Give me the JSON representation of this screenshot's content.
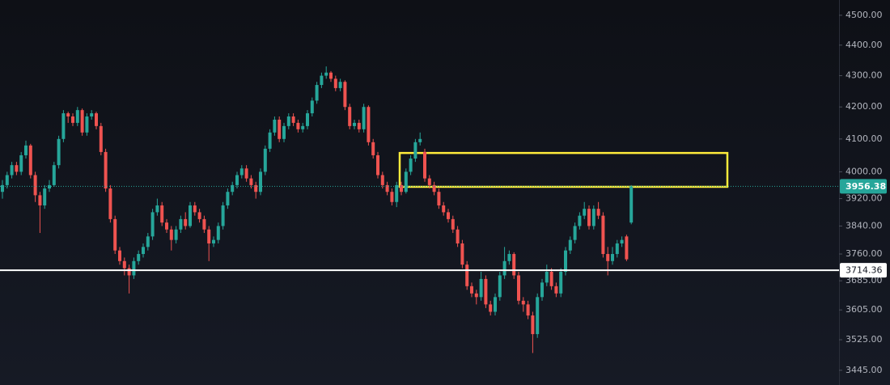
{
  "chart_data": {
    "type": "candlestick",
    "scale": "log",
    "ylim": [
      3407,
      4552
    ],
    "yticks": [
      {
        "value": 4500,
        "label": "4500.00"
      },
      {
        "value": 4400,
        "label": "4400.00"
      },
      {
        "value": 4300,
        "label": "4300.00"
      },
      {
        "value": 4200,
        "label": "4200.00"
      },
      {
        "value": 4100,
        "label": "4100.00"
      },
      {
        "value": 4000,
        "label": "4000.00"
      },
      {
        "value": 3920,
        "label": "3920.00"
      },
      {
        "value": 3840,
        "label": "3840.00"
      },
      {
        "value": 3760,
        "label": "3760.00"
      },
      {
        "value": 3685,
        "label": "3685.00"
      },
      {
        "value": 3605,
        "label": "3605.00"
      },
      {
        "value": 3525,
        "label": "3525.00"
      },
      {
        "value": 3445,
        "label": "3445.00"
      }
    ],
    "up_color": "#26a69a",
    "down_color": "#ef5350",
    "level": 3714.36,
    "level_color": "#ffffff",
    "zone": {
      "low": 3955,
      "high": 4057,
      "color": "#ffeb3b"
    },
    "ohlc": [
      [
        3940,
        3975,
        3920,
        3960
      ],
      [
        3960,
        4000,
        3950,
        3990
      ],
      [
        3990,
        4030,
        3980,
        4020
      ],
      [
        4020,
        4030,
        3990,
        4000
      ],
      [
        4000,
        4060,
        3990,
        4050
      ],
      [
        4050,
        4095,
        4040,
        4080
      ],
      [
        4080,
        4085,
        3980,
        3990
      ],
      [
        3990,
        4000,
        3910,
        3930
      ],
      [
        3930,
        3940,
        3820,
        3900
      ],
      [
        3900,
        3960,
        3890,
        3950
      ],
      [
        3950,
        3975,
        3940,
        3960
      ],
      [
        3960,
        4030,
        3955,
        4020
      ],
      [
        4020,
        4110,
        4010,
        4100
      ],
      [
        4100,
        4190,
        4090,
        4180
      ],
      [
        4180,
        4185,
        4150,
        4170
      ],
      [
        4170,
        4180,
        4140,
        4150
      ],
      [
        4150,
        4200,
        4140,
        4190
      ],
      [
        4190,
        4195,
        4110,
        4120
      ],
      [
        4120,
        4180,
        4110,
        4170
      ],
      [
        4170,
        4190,
        4160,
        4180
      ],
      [
        4180,
        4185,
        4130,
        4140
      ],
      [
        4140,
        4150,
        4050,
        4060
      ],
      [
        4060,
        4070,
        3940,
        3950
      ],
      [
        3950,
        3960,
        3850,
        3860
      ],
      [
        3860,
        3870,
        3760,
        3770
      ],
      [
        3770,
        3780,
        3730,
        3740
      ],
      [
        3740,
        3750,
        3700,
        3720
      ],
      [
        3720,
        3730,
        3650,
        3700
      ],
      [
        3700,
        3750,
        3690,
        3740
      ],
      [
        3740,
        3770,
        3730,
        3760
      ],
      [
        3760,
        3790,
        3750,
        3780
      ],
      [
        3780,
        3820,
        3770,
        3810
      ],
      [
        3810,
        3890,
        3800,
        3880
      ],
      [
        3880,
        3920,
        3870,
        3900
      ],
      [
        3900,
        3910,
        3840,
        3850
      ],
      [
        3850,
        3860,
        3820,
        3830
      ],
      [
        3830,
        3840,
        3770,
        3800
      ],
      [
        3800,
        3840,
        3790,
        3830
      ],
      [
        3830,
        3870,
        3820,
        3860
      ],
      [
        3860,
        3880,
        3830,
        3840
      ],
      [
        3840,
        3910,
        3835,
        3900
      ],
      [
        3900,
        3910,
        3870,
        3880
      ],
      [
        3880,
        3890,
        3850,
        3860
      ],
      [
        3860,
        3870,
        3820,
        3830
      ],
      [
        3830,
        3840,
        3740,
        3790
      ],
      [
        3790,
        3810,
        3780,
        3800
      ],
      [
        3800,
        3850,
        3790,
        3840
      ],
      [
        3840,
        3910,
        3830,
        3900
      ],
      [
        3900,
        3950,
        3890,
        3940
      ],
      [
        3940,
        3970,
        3930,
        3960
      ],
      [
        3960,
        4000,
        3950,
        3990
      ],
      [
        3990,
        4020,
        3980,
        4010
      ],
      [
        4010,
        4020,
        3970,
        3980
      ],
      [
        3980,
        3990,
        3950,
        3960
      ],
      [
        3960,
        3970,
        3920,
        3940
      ],
      [
        3940,
        4010,
        3930,
        4000
      ],
      [
        4000,
        4080,
        3990,
        4070
      ],
      [
        4070,
        4130,
        4060,
        4120
      ],
      [
        4120,
        4170,
        4110,
        4160
      ],
      [
        4160,
        4170,
        4090,
        4100
      ],
      [
        4100,
        4150,
        4090,
        4140
      ],
      [
        4140,
        4180,
        4130,
        4170
      ],
      [
        4170,
        4180,
        4140,
        4150
      ],
      [
        4150,
        4160,
        4120,
        4130
      ],
      [
        4130,
        4150,
        4120,
        4140
      ],
      [
        4140,
        4190,
        4130,
        4180
      ],
      [
        4180,
        4230,
        4170,
        4220
      ],
      [
        4220,
        4280,
        4210,
        4270
      ],
      [
        4270,
        4310,
        4260,
        4300
      ],
      [
        4300,
        4330,
        4290,
        4310
      ],
      [
        4310,
        4315,
        4280,
        4290
      ],
      [
        4290,
        4300,
        4250,
        4260
      ],
      [
        4260,
        4290,
        4250,
        4280
      ],
      [
        4280,
        4285,
        4190,
        4200
      ],
      [
        4200,
        4210,
        4130,
        4140
      ],
      [
        4140,
        4160,
        4130,
        4150
      ],
      [
        4150,
        4160,
        4120,
        4130
      ],
      [
        4130,
        4210,
        4120,
        4200
      ],
      [
        4200,
        4205,
        4080,
        4090
      ],
      [
        4090,
        4100,
        4040,
        4050
      ],
      [
        4050,
        4060,
        3980,
        3990
      ],
      [
        3990,
        4000,
        3950,
        3960
      ],
      [
        3960,
        3970,
        3930,
        3940
      ],
      [
        3940,
        3950,
        3900,
        3910
      ],
      [
        3910,
        3970,
        3895,
        3960
      ],
      [
        3960,
        3970,
        3930,
        3940
      ],
      [
        3940,
        4010,
        3935,
        4000
      ],
      [
        4000,
        4050,
        3990,
        4040
      ],
      [
        4040,
        4100,
        4030,
        4090
      ],
      [
        4090,
        4120,
        4080,
        4100
      ],
      [
        4060,
        4070,
        3970,
        3980
      ],
      [
        3980,
        3990,
        3950,
        3960
      ],
      [
        3960,
        3970,
        3930,
        3940
      ],
      [
        3940,
        3950,
        3890,
        3900
      ],
      [
        3900,
        3910,
        3870,
        3880
      ],
      [
        3880,
        3890,
        3850,
        3860
      ],
      [
        3860,
        3870,
        3820,
        3830
      ],
      [
        3830,
        3840,
        3780,
        3790
      ],
      [
        3790,
        3800,
        3720,
        3730
      ],
      [
        3730,
        3740,
        3660,
        3670
      ],
      [
        3670,
        3680,
        3640,
        3650
      ],
      [
        3650,
        3660,
        3620,
        3640
      ],
      [
        3640,
        3710,
        3630,
        3690
      ],
      [
        3690,
        3700,
        3610,
        3620
      ],
      [
        3620,
        3630,
        3590,
        3600
      ],
      [
        3600,
        3650,
        3590,
        3640
      ],
      [
        3640,
        3710,
        3630,
        3700
      ],
      [
        3700,
        3780,
        3690,
        3740
      ],
      [
        3740,
        3770,
        3730,
        3760
      ],
      [
        3760,
        3765,
        3690,
        3700
      ],
      [
        3700,
        3710,
        3620,
        3630
      ],
      [
        3630,
        3640,
        3600,
        3620
      ],
      [
        3620,
        3630,
        3580,
        3590
      ],
      [
        3590,
        3600,
        3490,
        3540
      ],
      [
        3540,
        3650,
        3530,
        3640
      ],
      [
        3640,
        3690,
        3630,
        3680
      ],
      [
        3680,
        3730,
        3670,
        3710
      ],
      [
        3710,
        3720,
        3660,
        3670
      ],
      [
        3670,
        3680,
        3640,
        3650
      ],
      [
        3650,
        3720,
        3640,
        3710
      ],
      [
        3710,
        3780,
        3700,
        3770
      ],
      [
        3770,
        3810,
        3760,
        3800
      ],
      [
        3800,
        3850,
        3790,
        3840
      ],
      [
        3840,
        3880,
        3830,
        3870
      ],
      [
        3870,
        3910,
        3860,
        3890
      ],
      [
        3890,
        3900,
        3830,
        3840
      ],
      [
        3840,
        3900,
        3830,
        3890
      ],
      [
        3890,
        3910,
        3860,
        3870
      ],
      [
        3870,
        3880,
        3750,
        3760
      ],
      [
        3760,
        3780,
        3700,
        3740
      ],
      [
        3740,
        3780,
        3730,
        3760
      ],
      [
        3760,
        3800,
        3750,
        3790
      ],
      [
        3790,
        3810,
        3780,
        3800
      ],
      [
        3810,
        3815,
        3740,
        3745
      ],
      [
        3850,
        3960,
        3845,
        3956.38
      ]
    ]
  }
}
